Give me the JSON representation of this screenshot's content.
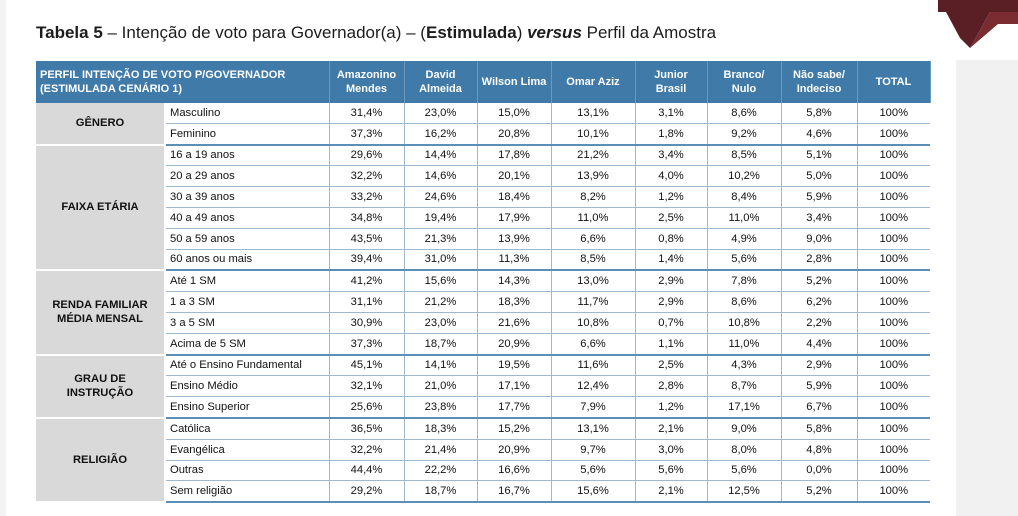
{
  "title": {
    "prefix": "Tabela 5",
    "part1": " – Intenção de voto para Governador(a) – (",
    "stimulated": "Estimulada",
    "part2": ") ",
    "versus": "versus",
    "part3": " Perfil da Amostra"
  },
  "header": {
    "profile": "PERFIL INTENÇÃO DE VOTO P/GOVERNADOR (ESTIMULADA CENÁRIO 1)",
    "columns": [
      "Amazonino Mendes",
      "David Almeida",
      "Wilson Lima",
      "Omar Aziz",
      "Junior Brasil",
      "Branco/ Nulo",
      "Não sabe/ Indeciso",
      "TOTAL"
    ]
  },
  "groups": [
    {
      "category": "GÊNERO",
      "rows": [
        {
          "label": "Masculino",
          "values": [
            "31,4%",
            "23,0%",
            "15,0%",
            "13,1%",
            "3,1%",
            "8,6%",
            "5,8%",
            "100%"
          ]
        },
        {
          "label": "Feminino",
          "values": [
            "37,3%",
            "16,2%",
            "20,8%",
            "10,1%",
            "1,8%",
            "9,2%",
            "4,6%",
            "100%"
          ]
        }
      ]
    },
    {
      "category": "FAIXA ETÁRIA",
      "rows": [
        {
          "label": "16 a 19 anos",
          "values": [
            "29,6%",
            "14,4%",
            "17,8%",
            "21,2%",
            "3,4%",
            "8,5%",
            "5,1%",
            "100%"
          ]
        },
        {
          "label": "20 a 29 anos",
          "values": [
            "32,2%",
            "14,6%",
            "20,1%",
            "13,9%",
            "4,0%",
            "10,2%",
            "5,0%",
            "100%"
          ]
        },
        {
          "label": "30 a 39 anos",
          "values": [
            "33,2%",
            "24,6%",
            "18,4%",
            "8,2%",
            "1,2%",
            "8,4%",
            "5,9%",
            "100%"
          ]
        },
        {
          "label": "40 a 49 anos",
          "values": [
            "34,8%",
            "19,4%",
            "17,9%",
            "11,0%",
            "2,5%",
            "11,0%",
            "3,4%",
            "100%"
          ]
        },
        {
          "label": "50 a 59 anos",
          "values": [
            "43,5%",
            "21,3%",
            "13,9%",
            "6,6%",
            "0,8%",
            "4,9%",
            "9,0%",
            "100%"
          ]
        },
        {
          "label": "60 anos ou mais",
          "values": [
            "39,4%",
            "31,0%",
            "11,3%",
            "8,5%",
            "1,4%",
            "5,6%",
            "2,8%",
            "100%"
          ]
        }
      ]
    },
    {
      "category": "RENDA FAMILIAR MÉDIA MENSAL",
      "rows": [
        {
          "label": "Até 1 SM",
          "values": [
            "41,2%",
            "15,6%",
            "14,3%",
            "13,0%",
            "2,9%",
            "7,8%",
            "5,2%",
            "100%"
          ]
        },
        {
          "label": "1 a 3 SM",
          "values": [
            "31,1%",
            "21,2%",
            "18,3%",
            "11,7%",
            "2,9%",
            "8,6%",
            "6,2%",
            "100%"
          ]
        },
        {
          "label": "3 a 5 SM",
          "values": [
            "30,9%",
            "23,0%",
            "21,6%",
            "10,8%",
            "0,7%",
            "10,8%",
            "2,2%",
            "100%"
          ]
        },
        {
          "label": "Acima de 5 SM",
          "values": [
            "37,3%",
            "18,7%",
            "20,9%",
            "6,6%",
            "1,1%",
            "11,0%",
            "4,4%",
            "100%"
          ]
        }
      ]
    },
    {
      "category": "GRAU DE INSTRUÇÃO",
      "rows": [
        {
          "label": "Até o Ensino Fundamental",
          "values": [
            "45,1%",
            "14,1%",
            "19,5%",
            "11,6%",
            "2,5%",
            "4,3%",
            "2,9%",
            "100%"
          ]
        },
        {
          "label": "Ensino Médio",
          "values": [
            "32,1%",
            "21,0%",
            "17,1%",
            "12,4%",
            "2,8%",
            "8,7%",
            "5,9%",
            "100%"
          ]
        },
        {
          "label": "Ensino Superior",
          "values": [
            "25,6%",
            "23,8%",
            "17,7%",
            "7,9%",
            "1,2%",
            "17,1%",
            "6,7%",
            "100%"
          ]
        }
      ]
    },
    {
      "category": "RELIGIÃO",
      "rows": [
        {
          "label": "Católica",
          "values": [
            "36,5%",
            "18,3%",
            "15,2%",
            "13,1%",
            "2,1%",
            "9,0%",
            "5,8%",
            "100%"
          ]
        },
        {
          "label": "Evangélica",
          "values": [
            "32,2%",
            "21,4%",
            "20,9%",
            "9,7%",
            "3,0%",
            "8,0%",
            "4,8%",
            "100%"
          ]
        },
        {
          "label": "Outras",
          "values": [
            "44,4%",
            "22,2%",
            "16,6%",
            "5,6%",
            "5,6%",
            "5,6%",
            "0,0%",
            "100%"
          ]
        },
        {
          "label": "Sem religião",
          "values": [
            "29,2%",
            "18,7%",
            "16,7%",
            "15,6%",
            "2,1%",
            "12,5%",
            "5,2%",
            "100%"
          ]
        }
      ]
    }
  ],
  "colors": {
    "header_bg": "#3f7aa9",
    "category_bg": "#d9d9d9",
    "corner_accent": "#5a1f24"
  }
}
